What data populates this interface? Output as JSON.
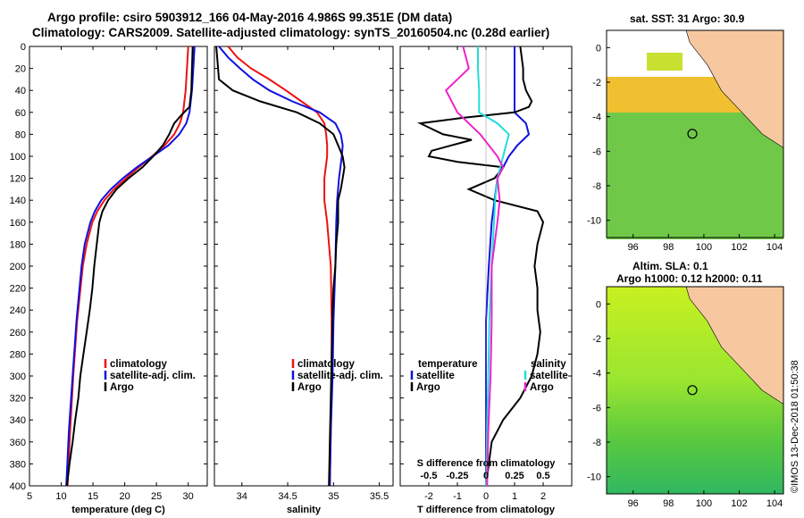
{
  "header": {
    "line1": "Argo profile: csiro 5903912_166 04-May-2016 4.986S 99.351E (DM data)",
    "line2": "Climatology: CARS2009. Satellite-adjusted climatology: synTS_20160504.nc (0.28d earlier)"
  },
  "colors": {
    "climatology": "#ee1111",
    "satellite": "#1010e0",
    "argo": "#000000",
    "satellite_s": "#22dddd",
    "argo_s": "#ee22cc",
    "land": "#f7c8a0"
  },
  "chart_data": [
    {
      "type": "line",
      "name": "temperature",
      "xlabel": "temperature (deg C)",
      "ylabel": "",
      "xlim": [
        5,
        33
      ],
      "ylim": [
        400,
        0
      ],
      "xticks": [
        "5",
        "10",
        "15",
        "20",
        "25",
        "30"
      ],
      "yticks": [
        "0",
        "20",
        "40",
        "60",
        "80",
        "100",
        "120",
        "140",
        "160",
        "180",
        "200",
        "220",
        "240",
        "260",
        "280",
        "300",
        "320",
        "340",
        "360",
        "380",
        "400"
      ],
      "legend": [
        "climatology",
        "satellite-adj. clim.",
        "Argo"
      ],
      "series": [
        {
          "name": "climatology",
          "depth": [
            0,
            20,
            40,
            60,
            70,
            80,
            90,
            100,
            110,
            120,
            130,
            140,
            150,
            160,
            180,
            200,
            250,
            300,
            350,
            400
          ],
          "values": [
            30.0,
            29.8,
            29.6,
            29.2,
            28.7,
            27.8,
            26.3,
            24.3,
            22.2,
            20.2,
            18.3,
            16.8,
            15.7,
            14.9,
            14.0,
            13.4,
            12.5,
            11.9,
            11.4,
            11.0
          ]
        },
        {
          "name": "satellite-adj. clim.",
          "depth": [
            0,
            20,
            40,
            60,
            70,
            80,
            90,
            100,
            110,
            120,
            130,
            140,
            150,
            160,
            180,
            200,
            250,
            300,
            350,
            400
          ],
          "values": [
            31.0,
            30.8,
            30.6,
            30.2,
            29.7,
            28.6,
            26.9,
            24.4,
            21.9,
            19.7,
            17.8,
            16.3,
            15.3,
            14.6,
            13.7,
            13.2,
            12.4,
            11.8,
            11.2,
            10.8
          ]
        },
        {
          "name": "Argo",
          "depth": [
            0,
            20,
            40,
            55,
            62,
            70,
            80,
            90,
            100,
            110,
            120,
            130,
            140,
            150,
            160,
            180,
            200,
            220,
            240,
            260,
            280,
            300,
            320,
            340,
            360,
            380,
            400
          ],
          "values": [
            30.7,
            30.6,
            30.5,
            30.2,
            29.0,
            27.8,
            27.0,
            26.0,
            24.5,
            22.8,
            20.6,
            18.7,
            17.4,
            16.5,
            16.0,
            15.6,
            15.2,
            14.9,
            14.5,
            14.0,
            13.5,
            13.0,
            12.7,
            12.2,
            11.8,
            11.3,
            10.9
          ]
        }
      ]
    },
    {
      "type": "line",
      "name": "salinity",
      "xlabel": "salinity",
      "ylabel": "",
      "xlim": [
        33.7,
        35.65
      ],
      "ylim": [
        400,
        0
      ],
      "xticks": [
        "34",
        "34.5",
        "35",
        "35.5"
      ],
      "legend": [
        "climatology",
        "satellite-adj. clim.",
        "Argo"
      ],
      "series": [
        {
          "name": "climatology",
          "depth": [
            0,
            10,
            20,
            30,
            40,
            50,
            60,
            70,
            80,
            90,
            100,
            120,
            140,
            160,
            200,
            250,
            300,
            350,
            400
          ],
          "values": [
            33.85,
            33.95,
            34.1,
            34.3,
            34.48,
            34.65,
            34.82,
            34.9,
            34.92,
            34.93,
            34.93,
            34.9,
            34.9,
            34.93,
            34.97,
            34.98,
            34.98,
            34.97,
            34.96
          ]
        },
        {
          "name": "satellite-adj. clim.",
          "depth": [
            0,
            10,
            20,
            30,
            40,
            50,
            60,
            70,
            80,
            90,
            100,
            120,
            140,
            160,
            200,
            250,
            300,
            350,
            400
          ],
          "values": [
            33.75,
            33.85,
            33.98,
            34.12,
            34.3,
            34.55,
            34.85,
            35.02,
            35.08,
            35.1,
            35.09,
            35.06,
            35.04,
            35.03,
            35.02,
            35.0,
            34.99,
            34.97,
            34.96
          ]
        },
        {
          "name": "Argo",
          "depth": [
            0,
            30,
            40,
            50,
            60,
            70,
            80,
            90,
            100,
            110,
            120,
            130,
            140,
            160,
            180,
            200,
            220,
            240,
            280,
            320,
            360,
            400
          ],
          "values": [
            33.72,
            33.75,
            33.9,
            34.2,
            34.6,
            34.85,
            35.0,
            35.05,
            35.1,
            35.12,
            35.1,
            35.08,
            35.05,
            35.05,
            35.03,
            35.02,
            35.0,
            34.99,
            34.98,
            34.97,
            34.96,
            34.95
          ]
        }
      ]
    },
    {
      "type": "line",
      "name": "differences",
      "xlabel": "T difference from climatology",
      "xlabel_top": "S difference from climatology",
      "xlim": [
        -3.0,
        3.0
      ],
      "ylim": [
        400,
        0
      ],
      "xticks": [
        "-2",
        "-1",
        "0",
        "1",
        "2"
      ],
      "xticks_top": [
        "-0.5",
        "-0.25",
        "0",
        "0.25",
        "0.5"
      ],
      "legend_left": [
        "temperature",
        "satellite",
        "Argo"
      ],
      "legend_right": [
        "salinity",
        "satellite",
        "Argo"
      ],
      "series": [
        {
          "name": "temperature satellite",
          "depth": [
            0,
            20,
            40,
            60,
            70,
            80,
            90,
            100,
            120,
            140,
            160,
            200,
            250,
            300,
            350,
            400
          ],
          "values": [
            1.0,
            1.0,
            1.0,
            1.0,
            1.4,
            1.5,
            1.1,
            0.8,
            0.4,
            0.3,
            0.2,
            0.1,
            0.0,
            0.0,
            0.0,
            0.0
          ]
        },
        {
          "name": "temperature Argo",
          "depth": [
            0,
            20,
            30,
            40,
            50,
            55,
            60,
            65,
            70,
            80,
            85,
            90,
            95,
            100,
            105,
            110,
            120,
            130,
            140,
            150,
            160,
            180,
            200,
            220,
            240,
            260,
            280,
            300,
            320,
            340,
            360,
            380,
            400
          ],
          "values": [
            1.2,
            1.3,
            1.3,
            1.4,
            1.6,
            1.5,
            1.0,
            -0.8,
            -2.3,
            -1.5,
            -0.5,
            -1.2,
            -1.9,
            -2.0,
            -1.0,
            0.6,
            0.3,
            -0.6,
            0.3,
            1.8,
            2.0,
            1.8,
            1.7,
            1.8,
            1.8,
            1.9,
            1.8,
            1.6,
            1.2,
            0.6,
            0.2,
            0.1,
            0.0
          ]
        },
        {
          "name": "salinity satellite",
          "depth": [
            0,
            20,
            40,
            60,
            70,
            80,
            100,
            120,
            140,
            160,
            200,
            250,
            300,
            350,
            400
          ],
          "values": [
            -0.07,
            -0.07,
            -0.06,
            -0.06,
            0.1,
            0.2,
            0.15,
            0.1,
            0.08,
            0.07,
            0.05,
            0.03,
            0.02,
            0.01,
            0.0
          ]
        },
        {
          "name": "salinity Argo",
          "depth": [
            0,
            20,
            40,
            60,
            80,
            100,
            110,
            120,
            140,
            160,
            200,
            250,
            300,
            350,
            400
          ],
          "values": [
            -0.2,
            -0.15,
            -0.35,
            -0.25,
            -0.05,
            0.1,
            0.15,
            0.1,
            0.12,
            0.1,
            0.05,
            0.05,
            0.04,
            0.02,
            0.01
          ]
        }
      ]
    }
  ],
  "maps": {
    "sst": {
      "title": "sat. SST: 31 Argo: 30.9",
      "xticks": [
        "96",
        "98",
        "100",
        "102",
        "104"
      ],
      "yticks": [
        "0",
        "-2",
        "-4",
        "-6",
        "-8",
        "-10"
      ],
      "argo_marker": "circle"
    },
    "sla": {
      "title_line1": "Altim. SLA: 0.1",
      "title_line2": "Argo h1000: 0.12 h2000: 0.11",
      "xticks": [
        "96",
        "98",
        "100",
        "102",
        "104"
      ],
      "yticks": [
        "0",
        "-2",
        "-4",
        "-6",
        "-8",
        "-10"
      ],
      "argo_marker": "circle"
    }
  },
  "footer": {
    "stamp": "©IMOS 13-Dec-2018 01:50:38"
  }
}
